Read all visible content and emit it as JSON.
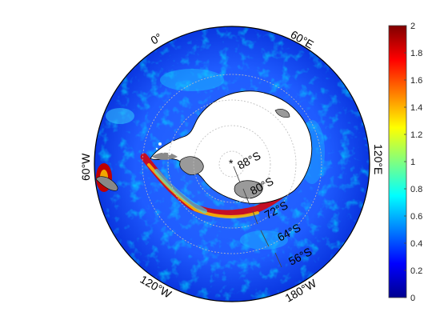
{
  "figure": {
    "projection": "south-polar stereographic",
    "variable_units": "",
    "colormap": "jet"
  },
  "longitude_labels": [
    {
      "id": "lon-0",
      "text": "0°"
    },
    {
      "id": "lon-60e",
      "text": "60°E"
    },
    {
      "id": "lon-120e",
      "text": "120°E"
    },
    {
      "id": "lon-180w",
      "text": "180°W"
    },
    {
      "id": "lon-120w",
      "text": "120°W"
    },
    {
      "id": "lon-60w",
      "text": "60°W"
    }
  ],
  "latitude_labels": [
    {
      "id": "lat-88s",
      "text": "88°S"
    },
    {
      "id": "lat-80s",
      "text": "80°S"
    },
    {
      "id": "lat-72s",
      "text": "72°S"
    },
    {
      "id": "lat-64s",
      "text": "64°S"
    },
    {
      "id": "lat-56s",
      "text": "56°S"
    }
  ],
  "pole_marker": "*",
  "colorbar": {
    "min": 0,
    "max": 2,
    "ticks": [
      "0",
      "0.2",
      "0.4",
      "0.6",
      "0.8",
      "1",
      "1.2",
      "1.4",
      "1.6",
      "1.8",
      "2"
    ],
    "colors": [
      "#00008f",
      "#0000ff",
      "#0080ff",
      "#00ffff",
      "#80ff80",
      "#ffff00",
      "#ff8000",
      "#ff0000",
      "#800000"
    ]
  },
  "colors": {
    "land": "#ffffff",
    "ice_shelf": "#9a9a9a",
    "ocean_background": "#1a4fff",
    "coastline": "#000000",
    "graticule": "#bdbdbd"
  }
}
